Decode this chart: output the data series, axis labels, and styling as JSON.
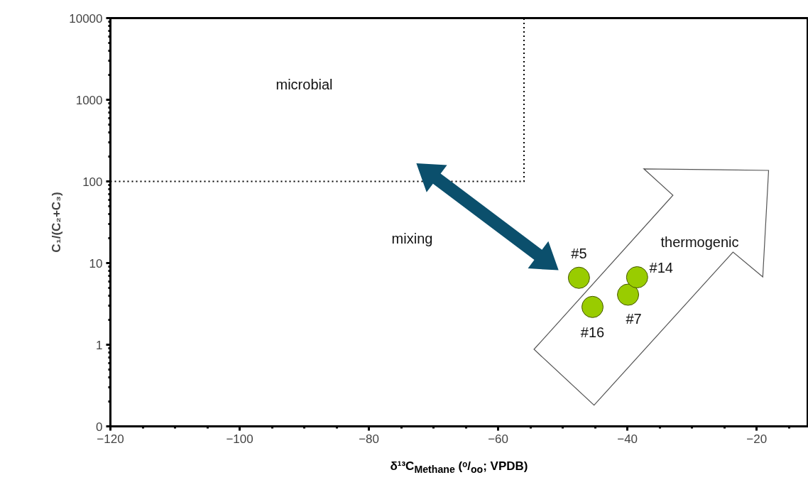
{
  "chart_data": {
    "type": "scatter",
    "xlabel": "δ¹³C$_{Methane}$ (ᵒ/$_{oo}$; VPDB)",
    "ylabel": "C₁/(C₂+C₃)",
    "xlim": [
      -120,
      -12
    ],
    "xticks": [
      -120,
      -100,
      -80,
      -60,
      -40,
      -20
    ],
    "ylim": [
      0.1,
      10000
    ],
    "yticks": [
      {
        "value": 0.1,
        "label": "0"
      },
      1,
      10,
      100,
      1000,
      10000
    ],
    "log": "y",
    "grid": false,
    "legend": false,
    "marker": "circle",
    "series": [
      {
        "name": "#5",
        "color": "#99cc00",
        "x": [
          -47.5
        ],
        "values": [
          6.6
        ]
      },
      {
        "name": "#16",
        "color": "#99cc00",
        "x": [
          -45.4
        ],
        "values": [
          2.9
        ]
      },
      {
        "name": "#7",
        "color": "#99cc00",
        "x": [
          -39.9
        ],
        "values": [
          4.1
        ]
      },
      {
        "name": "#14",
        "color": "#99cc00",
        "x": [
          -38.5
        ],
        "values": [
          6.7
        ]
      },
      {
        "type": "line",
        "color": "#000000",
        "line_style": "dotted",
        "marker": "none",
        "x": [
          -120,
          -56,
          -56,
          -120
        ],
        "values": [
          100,
          100,
          10000,
          10000
        ]
      }
    ],
    "annotations": [
      "microbial",
      "mixing",
      "thermogenic"
    ]
  }
}
